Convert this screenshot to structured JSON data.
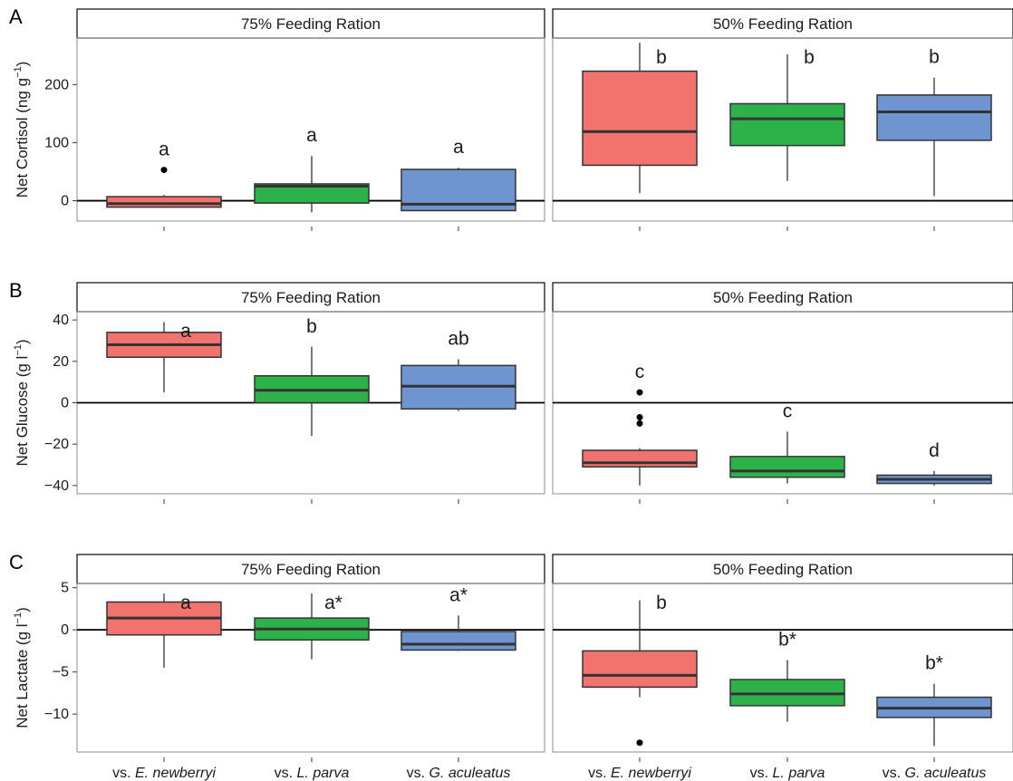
{
  "chart_data": [
    {
      "type": "box",
      "panel_letter": "A",
      "ylabel": "Net Cortisol (ng g⁻¹)",
      "ylim": [
        -35,
        280
      ],
      "yticks": [
        0,
        100,
        200
      ],
      "facets": [
        {
          "title": "75% Feeding Ration",
          "boxes": [
            {
              "category": "vs. E. newberryi",
              "min": -12,
              "q1": -11,
              "median": -5,
              "q3": 7,
              "max": 10,
              "outliers": [
                53
              ],
              "label": "a"
            },
            {
              "category": "vs. L. parva",
              "min": -20,
              "q1": -4,
              "median": 25,
              "q3": 29,
              "max": 77,
              "outliers": [],
              "label": "a"
            },
            {
              "category": "vs. G. aculeatus",
              "min": -18,
              "q1": -17,
              "median": -6,
              "q3": 54,
              "max": 57,
              "outliers": [],
              "label": "a"
            }
          ]
        },
        {
          "title": "50% Feeding Ration",
          "boxes": [
            {
              "category": "vs. E. newberryi",
              "min": 13,
              "q1": 61,
              "median": 119,
              "q3": 223,
              "max": 272,
              "outliers": [],
              "label": "b"
            },
            {
              "category": "vs. L. parva",
              "min": 34,
              "q1": 95,
              "median": 141,
              "q3": 167,
              "max": 252,
              "outliers": [],
              "label": "b"
            },
            {
              "category": "vs. G. aculeatus",
              "min": 8,
              "q1": 104,
              "median": 153,
              "q3": 182,
              "max": 212,
              "outliers": [],
              "label": "b"
            }
          ]
        }
      ]
    },
    {
      "type": "box",
      "panel_letter": "B",
      "ylabel": "Net Glucose (g l⁻¹)",
      "ylim": [
        -44,
        44
      ],
      "yticks": [
        -40,
        -20,
        0,
        20,
        40
      ],
      "facets": [
        {
          "title": "75% Feeding Ration",
          "boxes": [
            {
              "category": "vs. E. newberryi",
              "min": 5,
              "q1": 22,
              "median": 28,
              "q3": 34,
              "max": 39,
              "outliers": [],
              "label": "a"
            },
            {
              "category": "vs. L. parva",
              "min": -16,
              "q1": 0,
              "median": 6,
              "q3": 13,
              "max": 27,
              "outliers": [],
              "label": "b"
            },
            {
              "category": "vs. G. aculeatus",
              "min": -4,
              "q1": -3,
              "median": 8,
              "q3": 18,
              "max": 21,
              "outliers": [],
              "label": "ab"
            }
          ]
        },
        {
          "title": "50% Feeding Ration",
          "boxes": [
            {
              "category": "vs. E. newberryi",
              "min": -40,
              "q1": -31,
              "median": -29,
              "q3": -23,
              "max": -22,
              "outliers": [
                5,
                -7,
                -10
              ],
              "label": "c"
            },
            {
              "category": "vs. L. parva",
              "min": -39,
              "q1": -36,
              "median": -33,
              "q3": -26,
              "max": -14,
              "outliers": [],
              "label": "c"
            },
            {
              "category": "vs. G. aculeatus",
              "min": -40,
              "q1": -39,
              "median": -37,
              "q3": -35,
              "max": -33,
              "outliers": [],
              "label": "d"
            }
          ]
        }
      ]
    },
    {
      "type": "box",
      "panel_letter": "C",
      "ylabel": "Net Lactate (g l⁻¹)",
      "ylim": [
        -14.5,
        5.5
      ],
      "yticks": [
        -10,
        -5,
        0,
        5
      ],
      "facets": [
        {
          "title": "75% Feeding Ration",
          "boxes": [
            {
              "category": "vs. E. newberryi",
              "min": -4.5,
              "q1": -0.6,
              "median": 1.4,
              "q3": 3.3,
              "max": 4.3,
              "outliers": [],
              "label": "a"
            },
            {
              "category": "vs. L. parva",
              "min": -3.5,
              "q1": -1.2,
              "median": 0.1,
              "q3": 1.4,
              "max": 4.3,
              "outliers": [],
              "label": "a*"
            },
            {
              "category": "vs. G. aculeatus",
              "min": -2.5,
              "q1": -2.4,
              "median": -1.7,
              "q3": -0.2,
              "max": 1.7,
              "outliers": [],
              "label": "a*"
            }
          ]
        },
        {
          "title": "50% Feeding Ration",
          "boxes": [
            {
              "category": "vs. E. newberryi",
              "min": -8.0,
              "q1": -6.8,
              "median": -5.4,
              "q3": -2.5,
              "max": 3.5,
              "outliers": [
                -13.4
              ],
              "label": "b"
            },
            {
              "category": "vs. L. parva",
              "min": -10.9,
              "q1": -9.0,
              "median": -7.6,
              "q3": -5.9,
              "max": -3.6,
              "outliers": [],
              "label": "b*"
            },
            {
              "category": "vs. G. aculeatus",
              "min": -13.8,
              "q1": -10.4,
              "median": -9.3,
              "q3": -8.0,
              "max": -6.4,
              "outliers": [],
              "label": "b*"
            }
          ]
        }
      ]
    }
  ],
  "x_categories": [
    {
      "prefix": "vs. ",
      "name": "E. newberryi"
    },
    {
      "prefix": "vs. ",
      "name": "L. parva"
    },
    {
      "prefix": "vs. ",
      "name": "G. aculeatus"
    }
  ],
  "colors": {
    "box_fills": [
      "#F2736E",
      "#2DB24A",
      "#6E95CF"
    ],
    "box_stroke": "#333333",
    "panel_border": "#8c8c8c",
    "strip_fill": "#ffffff",
    "reference_line": "#000000"
  },
  "reference_line_y": 0,
  "grid": false
}
